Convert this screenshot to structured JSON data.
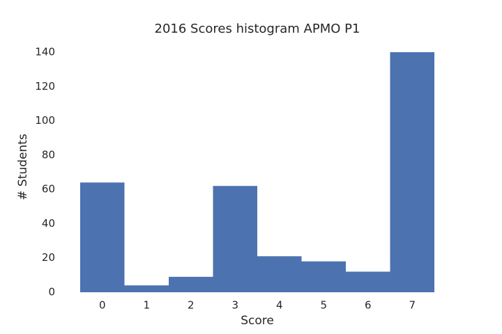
{
  "chart_data": {
    "type": "bar",
    "title": "2016 Scores histogram APMO P1",
    "x_label": "Score",
    "y_label": "# Students",
    "categories": [
      "0",
      "1",
      "2",
      "3",
      "4",
      "5",
      "6",
      "7"
    ],
    "values": [
      64,
      4,
      9,
      62,
      21,
      18,
      12,
      140
    ],
    "color": "#4c72b0",
    "ylim": [
      0,
      140
    ],
    "yticks": [
      0,
      20,
      40,
      60,
      80,
      100,
      120,
      140
    ],
    "grid": false
  }
}
